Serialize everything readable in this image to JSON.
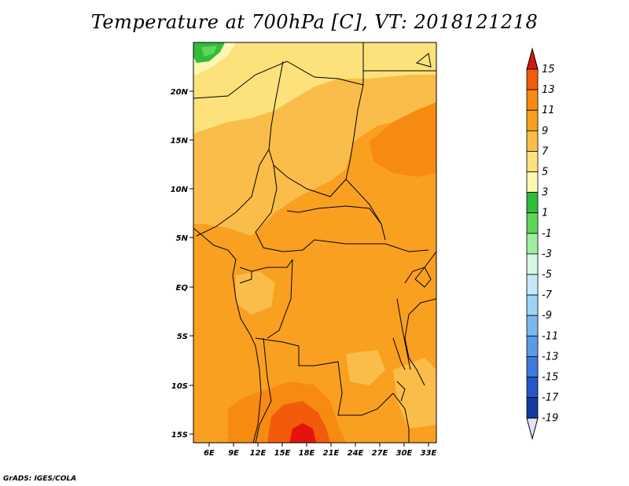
{
  "title": "Temperature at 700hPa [C], VT: 2018121218",
  "credit": "GrADS: IGES/COLA",
  "map": {
    "lat_labels": [
      "20N",
      "15N",
      "10N",
      "5N",
      "EQ",
      "5S",
      "10S",
      "15S"
    ],
    "lon_labels": [
      "6E",
      "9E",
      "12E",
      "15E",
      "18E",
      "21E",
      "24E",
      "27E",
      "30E",
      "33E"
    ]
  },
  "colorbar": {
    "levels": [
      "15",
      "13",
      "11",
      "9",
      "7",
      "5",
      "3",
      "1",
      "-1",
      "-3",
      "-5",
      "-7",
      "-9",
      "-11",
      "-13",
      "-15",
      "-17",
      "-19"
    ],
    "colors": [
      "#e4140c",
      "#f25a0c",
      "#f78a10",
      "#f9a020",
      "#fbbd4a",
      "#fde27c",
      "#fdf7b3",
      "#33bb3c",
      "#5fd65a",
      "#a0eda0",
      "#d6f7e6",
      "#c6e9fa",
      "#9ed3f5",
      "#79b9f0",
      "#5a9be8",
      "#3d7ade",
      "#2557c9",
      "#123a9e",
      "#0a1d6b"
    ],
    "top_arrow_color": "#d3180c",
    "bottom_arrow_color": "#e6e2fa"
  }
}
